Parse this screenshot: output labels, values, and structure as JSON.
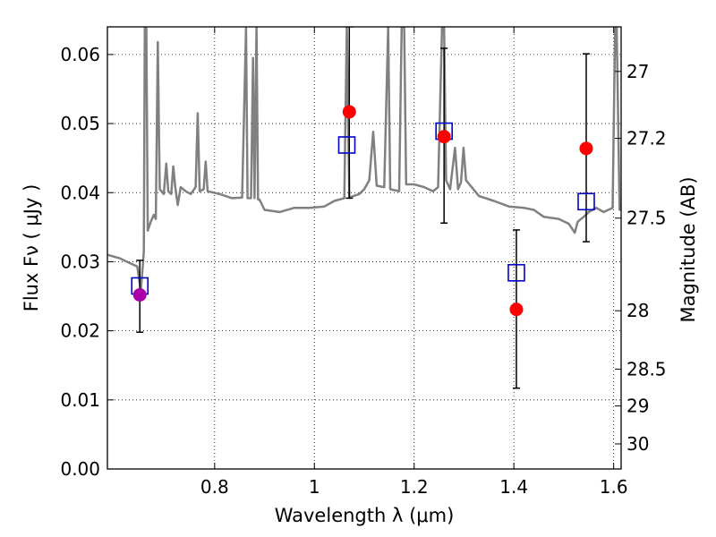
{
  "chart_data": {
    "type": "scatter",
    "title": "",
    "xlabel": "Wavelength  λ (μm)",
    "ylabel_left": "Flux  Fν  ( μJy )",
    "ylabel_right": "Magnitude (AB)",
    "xlim": [
      0.585,
      1.615
    ],
    "ylim": [
      0.0,
      0.064
    ],
    "grid": true,
    "x_ticks": [
      0.8,
      1.0,
      1.2,
      1.4,
      1.6
    ],
    "x_tick_labels": [
      "0.8",
      "1",
      "1.2",
      "1.4",
      "1.6"
    ],
    "y_ticks": [
      0.0,
      0.01,
      0.02,
      0.03,
      0.04,
      0.05,
      0.06
    ],
    "y_tick_labels": [
      "0.00",
      "0.01",
      "0.02",
      "0.03",
      "0.04",
      "0.05",
      "0.06"
    ],
    "mag_ticks": [
      27,
      27.2,
      27.5,
      28,
      28.5,
      29,
      30
    ],
    "mag_tick_labels": [
      "27",
      "27.2",
      "27.5",
      "28",
      "28.5",
      "29",
      "30"
    ],
    "colors": {
      "model": "#808080",
      "observed": "#ff0000",
      "observed_purple": "#aa00aa",
      "model_band": "#0000cc",
      "errorbar": "#000000"
    },
    "series": [
      {
        "name": "model spectrum",
        "kind": "line",
        "points": [
          [
            0.585,
            0.031
          ],
          [
            0.61,
            0.0305
          ],
          [
            0.63,
            0.0298
          ],
          [
            0.645,
            0.0293
          ],
          [
            0.652,
            0.0258
          ],
          [
            0.656,
            0.0295
          ],
          [
            0.658,
            0.0315
          ],
          [
            0.66,
            0.064
          ],
          [
            0.663,
            0.064
          ],
          [
            0.666,
            0.0345
          ],
          [
            0.672,
            0.0358
          ],
          [
            0.678,
            0.0368
          ],
          [
            0.682,
            0.0362
          ],
          [
            0.686,
            0.0618
          ],
          [
            0.69,
            0.0405
          ],
          [
            0.698,
            0.0398
          ],
          [
            0.703,
            0.0442
          ],
          [
            0.707,
            0.0402
          ],
          [
            0.713,
            0.0398
          ],
          [
            0.717,
            0.0438
          ],
          [
            0.721,
            0.0408
          ],
          [
            0.726,
            0.0382
          ],
          [
            0.732,
            0.0408
          ],
          [
            0.742,
            0.0402
          ],
          [
            0.752,
            0.0398
          ],
          [
            0.762,
            0.0408
          ],
          [
            0.766,
            0.0515
          ],
          [
            0.77,
            0.0402
          ],
          [
            0.778,
            0.0405
          ],
          [
            0.782,
            0.0445
          ],
          [
            0.786,
            0.0402
          ],
          [
            0.81,
            0.0398
          ],
          [
            0.835,
            0.0392
          ],
          [
            0.855,
            0.0393
          ],
          [
            0.863,
            0.0638
          ],
          [
            0.866,
            0.0392
          ],
          [
            0.873,
            0.0392
          ],
          [
            0.877,
            0.0595
          ],
          [
            0.88,
            0.0392
          ],
          [
            0.884,
            0.064
          ],
          [
            0.887,
            0.039
          ],
          [
            0.89,
            0.039
          ],
          [
            0.9,
            0.0375
          ],
          [
            0.93,
            0.0372
          ],
          [
            0.96,
            0.0378
          ],
          [
            0.99,
            0.0378
          ],
          [
            1.02,
            0.038
          ],
          [
            1.04,
            0.0388
          ],
          [
            1.06,
            0.0392
          ],
          [
            1.065,
            0.064
          ],
          [
            1.07,
            0.0393
          ],
          [
            1.09,
            0.0398
          ],
          [
            1.1,
            0.0405
          ],
          [
            1.11,
            0.0418
          ],
          [
            1.118,
            0.0488
          ],
          [
            1.125,
            0.041
          ],
          [
            1.14,
            0.0408
          ],
          [
            1.148,
            0.064
          ],
          [
            1.152,
            0.0405
          ],
          [
            1.17,
            0.0402
          ],
          [
            1.175,
            0.064
          ],
          [
            1.18,
            0.064
          ],
          [
            1.184,
            0.0412
          ],
          [
            1.2,
            0.0412
          ],
          [
            1.22,
            0.0408
          ],
          [
            1.238,
            0.0402
          ],
          [
            1.248,
            0.0408
          ],
          [
            1.256,
            0.064
          ],
          [
            1.26,
            0.064
          ],
          [
            1.264,
            0.0418
          ],
          [
            1.272,
            0.0405
          ],
          [
            1.282,
            0.0465
          ],
          [
            1.288,
            0.0405
          ],
          [
            1.294,
            0.0415
          ],
          [
            1.299,
            0.0465
          ],
          [
            1.304,
            0.0418
          ],
          [
            1.33,
            0.0395
          ],
          [
            1.36,
            0.0388
          ],
          [
            1.39,
            0.038
          ],
          [
            1.42,
            0.0378
          ],
          [
            1.44,
            0.0375
          ],
          [
            1.46,
            0.0365
          ],
          [
            1.49,
            0.0362
          ],
          [
            1.51,
            0.0355
          ],
          [
            1.522,
            0.0342
          ],
          [
            1.528,
            0.0358
          ],
          [
            1.54,
            0.0365
          ],
          [
            1.55,
            0.0372
          ],
          [
            1.565,
            0.0378
          ],
          [
            1.58,
            0.0372
          ],
          [
            1.598,
            0.0378
          ],
          [
            1.603,
            0.064
          ],
          [
            1.606,
            0.064
          ],
          [
            1.612,
            0.0375
          ],
          [
            1.615,
            0.0375
          ]
        ]
      },
      {
        "name": "model band flux",
        "kind": "square",
        "x": [
          0.65,
          1.065,
          1.26,
          1.405,
          1.545
        ],
        "y": [
          0.0265,
          0.0469,
          0.0489,
          0.0284,
          0.0387
        ]
      },
      {
        "name": "observed flux",
        "kind": "point",
        "x": [
          0.65,
          1.07,
          1.26,
          1.405,
          1.545
        ],
        "y": [
          0.0252,
          0.0517,
          0.0481,
          0.0231,
          0.0464
        ],
        "err_low": [
          0.0198,
          0.0392,
          0.0356,
          0.0117,
          0.0329
        ],
        "err_high": [
          0.0302,
          0.064,
          0.0609,
          0.0346,
          0.0601
        ],
        "marker_color": [
          "#aa00aa",
          "#ff0000",
          "#ff0000",
          "#ff0000",
          "#ff0000"
        ]
      }
    ]
  }
}
